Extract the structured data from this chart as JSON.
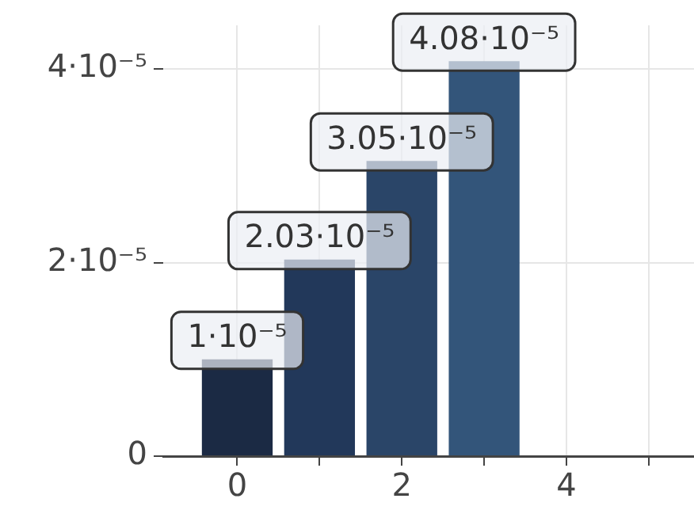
{
  "chart_data": {
    "type": "bar",
    "x": [
      0,
      1,
      2,
      3
    ],
    "values": [
      1e-05,
      2.03e-05,
      3.05e-05,
      4.08e-05
    ],
    "colors": [
      "#1b2a44",
      "#22385a",
      "#2a4568",
      "#33557a"
    ],
    "value_labels": [
      "1·10⁻⁵",
      "2.03·10⁻⁵",
      "3.05·10⁻⁵",
      "4.08·10⁻⁵"
    ],
    "xlim": [
      -0.9,
      5.55
    ],
    "xticks": [
      0,
      {
        "value": 1,
        "label": null
      },
      2,
      {
        "value": 3,
        "label": null
      },
      4,
      {
        "value": 5,
        "label": null
      }
    ],
    "ylim": [
      0,
      4.45e-05
    ],
    "yticks": [
      {
        "value": 0,
        "label": "0"
      },
      {
        "value": 2e-05,
        "label": "2·10⁻⁵"
      },
      {
        "value": 4e-05,
        "label": "4·10⁻⁵"
      }
    ],
    "grid": true,
    "legend": false
  }
}
